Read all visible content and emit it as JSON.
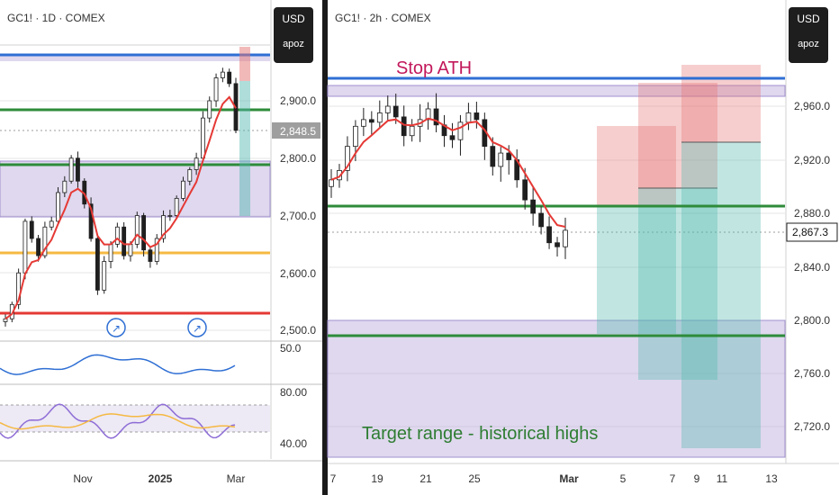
{
  "left_panel": {
    "title": "GC1! · 1D · COMEX",
    "currency": "USD",
    "scale_mode": "apoz",
    "price_ticks": [
      "2,900.0",
      "2,800.0",
      "2,700.0",
      "2,600.0",
      "2,500.0"
    ],
    "current_price": "2,848.5",
    "time_ticks": [
      "Nov",
      "2025",
      "Mar"
    ],
    "indicator1_tick": "50.0",
    "indicator2_ticks": [
      "80.00",
      "40.00"
    ]
  },
  "right_panel": {
    "title": "GC1! · 2h · COMEX",
    "currency": "USD",
    "scale_mode": "apoz",
    "price_ticks": [
      "2,960.0",
      "2,920.0",
      "2,880.0",
      "2,840.0",
      "2,800.0",
      "2,760.0",
      "2,720.0"
    ],
    "current_price": "2,867.3",
    "time_ticks": [
      "7",
      "19",
      "21",
      "25",
      "Mar",
      "5",
      "7",
      "9",
      "11",
      "13"
    ],
    "annotation_top": "Stop ATH",
    "annotation_bottom": "Target range - historical highs"
  },
  "colors": {
    "blue_line": "#2f6fd4",
    "green_line": "#2e8b3a",
    "red_line": "#e53935",
    "yellow_line": "#f5b942",
    "zone": "#b8a9d9",
    "ema": "#e53935",
    "candle": "#1f1f1f",
    "stop_annotation": "#c2185b",
    "target_annotation": "#2e7d32",
    "current_price_left": "#9e9e9e",
    "current_price_right": "#ffffff"
  },
  "chart_data": [
    {
      "type": "line",
      "title": "GC1! · 1D · COMEX",
      "y_axis_ticks": [
        2900,
        2800,
        2700,
        2600,
        2500
      ],
      "last_price": 2848.5,
      "x_ticks": [
        "Nov",
        "2025",
        "Mar"
      ],
      "horizontal_levels": {
        "blue": 2975,
        "green_upper": 2880,
        "green_lower": 2790,
        "yellow": 2640,
        "red": 2530
      },
      "zone": [
        2700,
        2800
      ],
      "closes": [
        2520,
        2545,
        2600,
        2690,
        2660,
        2630,
        2680,
        2690,
        2740,
        2760,
        2800,
        2760,
        2720,
        2660,
        2570,
        2620,
        2650,
        2680,
        2630,
        2650,
        2700,
        2640,
        2620,
        2660,
        2700,
        2700,
        2730,
        2760,
        2780,
        2800,
        2870,
        2900,
        2940,
        2950,
        2930,
        2848.5
      ]
    },
    {
      "type": "line",
      "title": "GC1! · 2h · COMEX",
      "y_axis_ticks": [
        2960,
        2920,
        2880,
        2840,
        2800,
        2760,
        2720
      ],
      "last_price": 2867.3,
      "x_ticks": [
        "7",
        "19",
        "21",
        "25",
        "Mar",
        "5",
        "7",
        "9",
        "11",
        "13"
      ],
      "horizontal_levels": {
        "blue": 2976,
        "green_upper": 2886,
        "green_lower": 2788
      },
      "zones": [
        [
          2966,
          2972
        ],
        [
          2690,
          2800
        ]
      ],
      "closes": [
        2905,
        2912,
        2930,
        2945,
        2950,
        2948,
        2955,
        2960,
        2952,
        2938,
        2945,
        2950,
        2958,
        2946,
        2938,
        2935,
        2948,
        2955,
        2950,
        2930,
        2915,
        2925,
        2920,
        2905,
        2890,
        2880,
        2870,
        2858,
        2855,
        2867.3
      ]
    }
  ]
}
